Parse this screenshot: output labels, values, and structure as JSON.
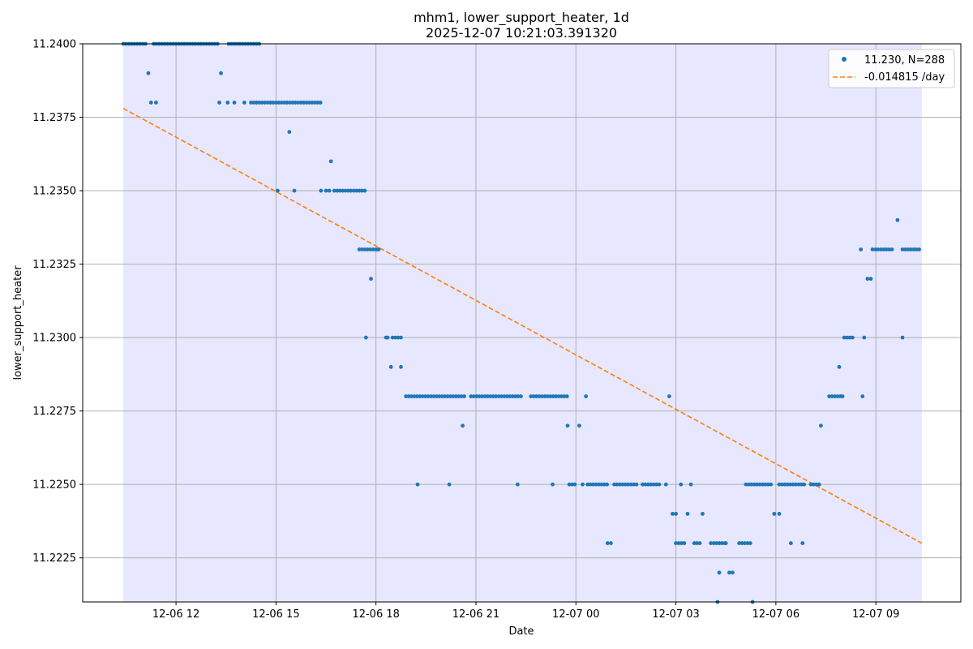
{
  "chart_data": {
    "type": "scatter",
    "title": "mhm1, lower_support_heater, 1d",
    "subtitle": "2025-12-07 10:21:03.391320",
    "xlabel": "Date",
    "ylabel": "lower_support_heater",
    "x_tick_labels": [
      "12-06 12",
      "12-06 15",
      "12-06 18",
      "12-06 21",
      "12-07 00",
      "12-07 03",
      "12-07 06",
      "12-07 09"
    ],
    "y_tick_labels": [
      "11.2225",
      "11.2250",
      "11.2275",
      "11.2300",
      "11.2325",
      "11.2350",
      "11.2375",
      "11.2400"
    ],
    "x_tick_hours": [
      12,
      15,
      18,
      21,
      24,
      27,
      30,
      33
    ],
    "y_ticks": [
      11.2225,
      11.225,
      11.2275,
      11.23,
      11.2325,
      11.235,
      11.2375,
      11.24
    ],
    "xlim_hours": [
      9.2,
      35.55
    ],
    "ylim": [
      11.221,
      11.24
    ],
    "grid": true,
    "legend_position": "top-right",
    "shaded_range_hours": [
      10.42,
      34.38
    ],
    "colors": {
      "points": "#1f77b4",
      "trend": "#ff7f0e",
      "shade": "#e4e4ff"
    },
    "series": [
      {
        "name": "11.230, N=288",
        "kind": "scatter",
        "groups": [
          {
            "y": 11.24,
            "from": 10.42,
            "to": 11.15,
            "step": 0.0833
          },
          {
            "y": 11.24,
            "from": 11.33,
            "to": 13.25,
            "step": 0.0833
          },
          {
            "y": 11.24,
            "from": 13.58,
            "to": 14.5,
            "step": 0.0833
          },
          {
            "y": 11.238,
            "from": 14.25,
            "to": 16.4,
            "step": 0.0833
          },
          {
            "y": 11.235,
            "from": 16.75,
            "to": 17.7,
            "step": 0.0833
          },
          {
            "y": 11.233,
            "from": 17.5,
            "to": 18.1,
            "step": 0.0833
          },
          {
            "y": 11.23,
            "from": 18.5,
            "to": 18.75,
            "step": 0.0833
          },
          {
            "y": 11.228,
            "from": 18.9,
            "to": 20.7,
            "step": 0.0833
          },
          {
            "y": 11.228,
            "from": 20.85,
            "to": 22.4,
            "step": 0.0833
          },
          {
            "y": 11.228,
            "from": 22.65,
            "to": 23.8,
            "step": 0.0833
          },
          {
            "y": 11.225,
            "from": 23.8,
            "to": 24.0,
            "step": 0.0833
          },
          {
            "y": 11.225,
            "from": 24.35,
            "to": 25.0,
            "step": 0.0833
          },
          {
            "y": 11.225,
            "from": 25.15,
            "to": 25.85,
            "step": 0.0833
          },
          {
            "y": 11.225,
            "from": 26.0,
            "to": 26.5,
            "step": 0.0833
          },
          {
            "y": 11.223,
            "from": 27.0,
            "to": 27.25,
            "step": 0.0833
          },
          {
            "y": 11.223,
            "from": 27.55,
            "to": 27.75,
            "step": 0.0833
          },
          {
            "y": 11.223,
            "from": 28.05,
            "to": 28.5,
            "step": 0.0833
          },
          {
            "y": 11.223,
            "from": 28.9,
            "to": 29.3,
            "step": 0.0833
          },
          {
            "y": 11.225,
            "from": 29.1,
            "to": 29.9,
            "step": 0.0833
          },
          {
            "y": 11.225,
            "from": 30.1,
            "to": 30.9,
            "step": 0.0833
          },
          {
            "y": 11.225,
            "from": 31.05,
            "to": 31.35,
            "step": 0.0833
          },
          {
            "y": 11.228,
            "from": 31.6,
            "to": 32.0,
            "step": 0.0833
          },
          {
            "y": 11.23,
            "from": 32.05,
            "to": 32.35,
            "step": 0.0833
          },
          {
            "y": 11.233,
            "from": 32.9,
            "to": 33.55,
            "step": 0.0833
          },
          {
            "y": 11.233,
            "from": 33.8,
            "to": 34.38,
            "step": 0.0833
          }
        ],
        "points": [
          [
            11.17,
            11.239
          ],
          [
            11.25,
            11.238
          ],
          [
            11.4,
            11.238
          ],
          [
            13.3,
            11.238
          ],
          [
            13.35,
            11.239
          ],
          [
            13.55,
            11.238
          ],
          [
            13.75,
            11.238
          ],
          [
            14.05,
            11.238
          ],
          [
            15.05,
            11.235
          ],
          [
            15.4,
            11.237
          ],
          [
            15.55,
            11.235
          ],
          [
            16.35,
            11.235
          ],
          [
            16.5,
            11.235
          ],
          [
            16.6,
            11.235
          ],
          [
            16.65,
            11.236
          ],
          [
            17.7,
            11.23
          ],
          [
            17.85,
            11.232
          ],
          [
            18.05,
            11.233
          ],
          [
            18.3,
            11.23
          ],
          [
            18.35,
            11.23
          ],
          [
            18.45,
            11.229
          ],
          [
            18.75,
            11.229
          ],
          [
            19.25,
            11.225
          ],
          [
            20.2,
            11.225
          ],
          [
            20.6,
            11.227
          ],
          [
            22.25,
            11.225
          ],
          [
            23.3,
            11.225
          ],
          [
            23.75,
            11.227
          ],
          [
            24.1,
            11.227
          ],
          [
            24.3,
            11.228
          ],
          [
            24.2,
            11.225
          ],
          [
            24.95,
            11.223
          ],
          [
            25.05,
            11.223
          ],
          [
            26.8,
            11.228
          ],
          [
            26.7,
            11.225
          ],
          [
            26.9,
            11.224
          ],
          [
            27.0,
            11.224
          ],
          [
            27.15,
            11.225
          ],
          [
            27.45,
            11.225
          ],
          [
            27.35,
            11.224
          ],
          [
            27.8,
            11.224
          ],
          [
            28.3,
            11.222
          ],
          [
            28.6,
            11.222
          ],
          [
            28.7,
            11.222
          ],
          [
            28.5,
            11.223
          ],
          [
            28.25,
            11.221
          ],
          [
            29.3,
            11.221
          ],
          [
            30.45,
            11.223
          ],
          [
            29.95,
            11.224
          ],
          [
            30.1,
            11.224
          ],
          [
            30.8,
            11.223
          ],
          [
            31.35,
            11.227
          ],
          [
            31.9,
            11.229
          ],
          [
            32.0,
            11.228
          ],
          [
            32.6,
            11.228
          ],
          [
            32.65,
            11.23
          ],
          [
            32.75,
            11.232
          ],
          [
            32.85,
            11.232
          ],
          [
            32.55,
            11.233
          ],
          [
            33.65,
            11.234
          ],
          [
            33.8,
            11.23
          ]
        ]
      },
      {
        "name": "-0.014815 /day",
        "kind": "line",
        "x_hours": [
          10.42,
          34.38
        ],
        "y": [
          11.2378,
          11.223
        ]
      }
    ]
  }
}
